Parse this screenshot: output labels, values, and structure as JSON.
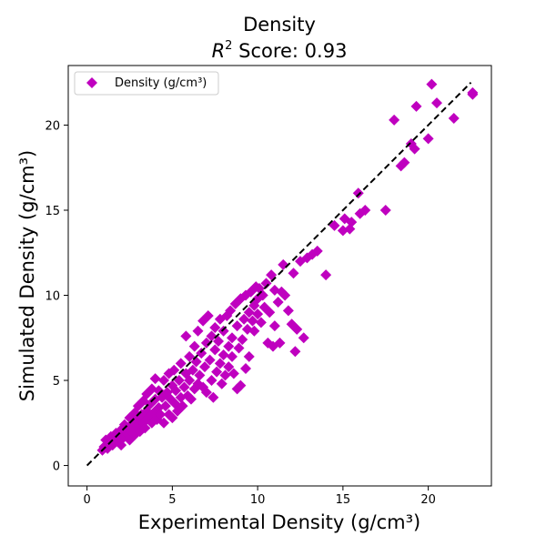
{
  "chart_data": {
    "type": "scatter",
    "title": "Density",
    "subtitle_prefix": "R",
    "subtitle_sup": "2",
    "subtitle_rest": " Score: 0.93",
    "xlabel": "Experimental Density (g/cm³)",
    "ylabel": "Simulated Density (g/cm³)",
    "xlim": [
      -1.1,
      23.7
    ],
    "ylim": [
      -1.2,
      23.5
    ],
    "xticks": [
      0,
      5,
      10,
      15,
      20
    ],
    "yticks": [
      0,
      5,
      10,
      15,
      20
    ],
    "grid": false,
    "legend_position": "top-left",
    "marker_color": "#bf00bf",
    "reference_line": {
      "style": "dashed",
      "color": "#000000",
      "from": [
        0,
        0
      ],
      "to": [
        22.5,
        22.5
      ]
    },
    "series": [
      {
        "name": "Density (g/cm³)",
        "marker": "diamond",
        "points": [
          [
            0.9,
            0.9
          ],
          [
            1.0,
            1.1
          ],
          [
            1.1,
            1.5
          ],
          [
            1.2,
            1.0
          ],
          [
            1.3,
            1.3
          ],
          [
            1.4,
            1.7
          ],
          [
            1.5,
            1.2
          ],
          [
            1.6,
            1.5
          ],
          [
            1.7,
            1.9
          ],
          [
            1.8,
            1.4
          ],
          [
            1.9,
            1.7
          ],
          [
            2.0,
            2.1
          ],
          [
            2.0,
            1.2
          ],
          [
            2.1,
            1.6
          ],
          [
            2.2,
            2.4
          ],
          [
            2.3,
            1.9
          ],
          [
            2.4,
            2.2
          ],
          [
            2.5,
            1.5
          ],
          [
            2.5,
            2.8
          ],
          [
            2.6,
            2.0
          ],
          [
            2.7,
            2.5
          ],
          [
            2.8,
            3.1
          ],
          [
            2.8,
            1.8
          ],
          [
            2.9,
            2.3
          ],
          [
            3.0,
            2.7
          ],
          [
            3.0,
            3.5
          ],
          [
            3.1,
            2.0
          ],
          [
            3.2,
            3.0
          ],
          [
            3.3,
            2.5
          ],
          [
            3.3,
            3.8
          ],
          [
            3.4,
            2.2
          ],
          [
            3.5,
            3.2
          ],
          [
            3.5,
            4.2
          ],
          [
            3.6,
            2.8
          ],
          [
            3.7,
            3.6
          ],
          [
            3.8,
            2.5
          ],
          [
            3.8,
            4.5
          ],
          [
            3.9,
            3.1
          ],
          [
            4.0,
            3.9
          ],
          [
            4.0,
            5.1
          ],
          [
            4.1,
            2.7
          ],
          [
            4.2,
            3.4
          ],
          [
            4.2,
            4.4
          ],
          [
            4.3,
            3.0
          ],
          [
            4.4,
            4.0
          ],
          [
            4.5,
            2.5
          ],
          [
            4.5,
            5.0
          ],
          [
            4.6,
            3.5
          ],
          [
            4.7,
            4.3
          ],
          [
            4.8,
            3.0
          ],
          [
            4.8,
            5.4
          ],
          [
            4.9,
            3.9
          ],
          [
            5.0,
            4.7
          ],
          [
            5.0,
            2.8
          ],
          [
            5.1,
            5.6
          ],
          [
            5.2,
            3.6
          ],
          [
            5.2,
            4.4
          ],
          [
            5.3,
            3.2
          ],
          [
            5.4,
            5.0
          ],
          [
            5.5,
            4.0
          ],
          [
            5.5,
            6.0
          ],
          [
            5.6,
            3.5
          ],
          [
            5.7,
            4.6
          ],
          [
            5.8,
            5.4
          ],
          [
            5.8,
            7.6
          ],
          [
            5.9,
            4.1
          ],
          [
            6.0,
            5.0
          ],
          [
            6.0,
            6.4
          ],
          [
            6.1,
            3.9
          ],
          [
            6.2,
            5.6
          ],
          [
            6.3,
            4.5
          ],
          [
            6.3,
            7.0
          ],
          [
            6.4,
            6.1
          ],
          [
            6.5,
            4.8
          ],
          [
            6.5,
            7.9
          ],
          [
            6.6,
            5.3
          ],
          [
            6.7,
            6.6
          ],
          [
            6.8,
            4.6
          ],
          [
            6.8,
            8.5
          ],
          [
            6.9,
            5.8
          ],
          [
            7.0,
            7.2
          ],
          [
            7.0,
            4.3
          ],
          [
            7.1,
            8.8
          ],
          [
            7.2,
            6.2
          ],
          [
            7.3,
            5.0
          ],
          [
            7.3,
            7.6
          ],
          [
            7.4,
            4.0
          ],
          [
            7.5,
            6.8
          ],
          [
            7.5,
            8.1
          ],
          [
            7.6,
            5.5
          ],
          [
            7.7,
            7.3
          ],
          [
            7.8,
            6.0
          ],
          [
            7.8,
            8.6
          ],
          [
            7.9,
            4.8
          ],
          [
            8.0,
            6.5
          ],
          [
            8.0,
            7.9
          ],
          [
            8.1,
            5.3
          ],
          [
            8.2,
            8.8
          ],
          [
            8.3,
            7.0
          ],
          [
            8.3,
            5.8
          ],
          [
            8.4,
            9.1
          ],
          [
            8.5,
            6.4
          ],
          [
            8.5,
            7.5
          ],
          [
            8.6,
            5.4
          ],
          [
            8.7,
            9.5
          ],
          [
            8.8,
            4.5
          ],
          [
            8.8,
            8.2
          ],
          [
            8.9,
            6.9
          ],
          [
            9.0,
            9.8
          ],
          [
            9.0,
            4.7
          ],
          [
            9.1,
            7.4
          ],
          [
            9.2,
            8.6
          ],
          [
            9.3,
            5.7
          ],
          [
            9.3,
            10.0
          ],
          [
            9.4,
            8.0
          ],
          [
            9.5,
            9.0
          ],
          [
            9.5,
            6.4
          ],
          [
            9.6,
            10.2
          ],
          [
            9.7,
            8.5
          ],
          [
            9.8,
            9.4
          ],
          [
            9.8,
            7.9
          ],
          [
            9.9,
            10.5
          ],
          [
            10.0,
            8.9
          ],
          [
            10.0,
            9.8
          ],
          [
            10.1,
            10.4
          ],
          [
            10.2,
            8.4
          ],
          [
            10.3,
            10.0
          ],
          [
            10.4,
            9.3
          ],
          [
            10.5,
            10.7
          ],
          [
            10.6,
            7.2
          ],
          [
            10.7,
            9.0
          ],
          [
            10.8,
            11.2
          ],
          [
            10.9,
            7.0
          ],
          [
            11.0,
            10.3
          ],
          [
            11.0,
            8.2
          ],
          [
            11.2,
            9.6
          ],
          [
            11.3,
            7.2
          ],
          [
            11.4,
            10.2
          ],
          [
            11.5,
            11.8
          ],
          [
            11.6,
            10.0
          ],
          [
            11.8,
            9.1
          ],
          [
            12.0,
            8.3
          ],
          [
            12.1,
            11.3
          ],
          [
            12.2,
            6.7
          ],
          [
            12.3,
            8.0
          ],
          [
            12.5,
            12.0
          ],
          [
            12.7,
            7.5
          ],
          [
            12.9,
            12.2
          ],
          [
            13.2,
            12.4
          ],
          [
            13.5,
            12.6
          ],
          [
            14.0,
            11.2
          ],
          [
            14.5,
            14.1
          ],
          [
            15.0,
            13.8
          ],
          [
            15.1,
            14.5
          ],
          [
            15.4,
            13.9
          ],
          [
            15.5,
            14.3
          ],
          [
            15.9,
            16.0
          ],
          [
            16.0,
            14.8
          ],
          [
            16.3,
            15.0
          ],
          [
            17.5,
            15.0
          ],
          [
            18.0,
            20.3
          ],
          [
            18.4,
            17.6
          ],
          [
            18.6,
            17.8
          ],
          [
            19.0,
            18.9
          ],
          [
            19.2,
            18.6
          ],
          [
            19.3,
            21.1
          ],
          [
            20.0,
            19.2
          ],
          [
            20.2,
            22.4
          ],
          [
            20.5,
            21.3
          ],
          [
            21.5,
            20.4
          ],
          [
            22.6,
            21.9
          ],
          [
            22.6,
            21.8
          ]
        ]
      }
    ]
  }
}
